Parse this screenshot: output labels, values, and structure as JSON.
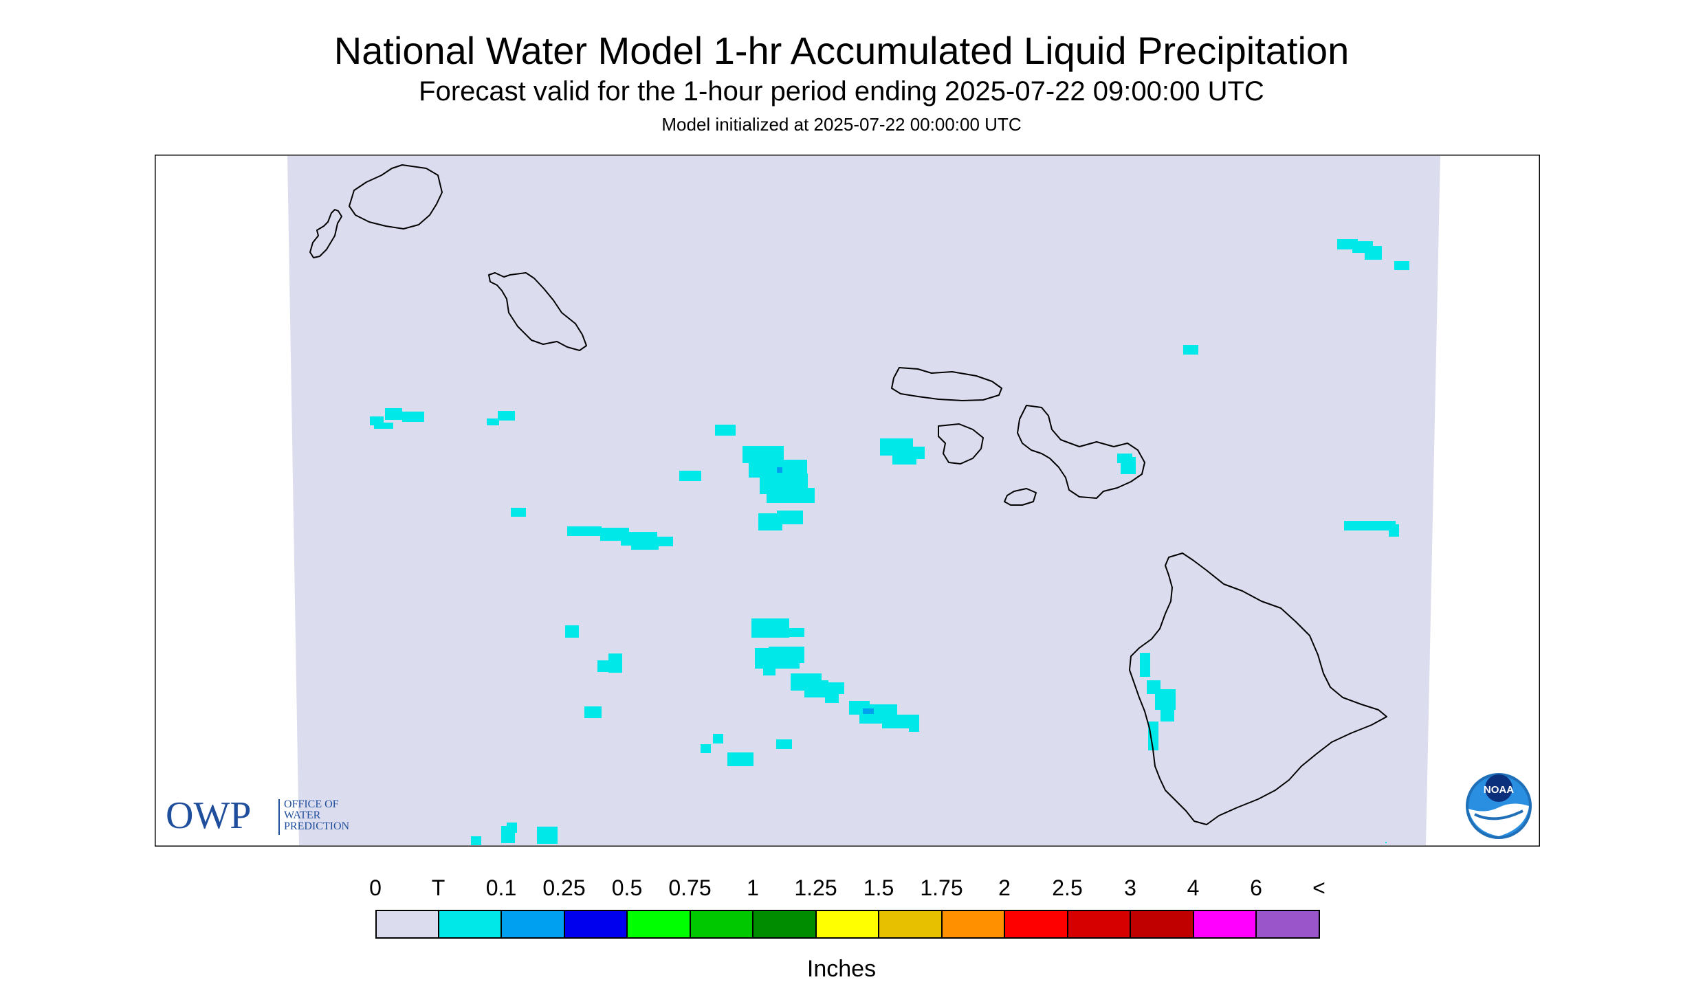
{
  "header": {
    "title": "National Water Model 1-hr Accumulated Liquid Precipitation",
    "subtitle": "Forecast valid for the 1-hour period ending 2025-07-22 09:00:00 UTC",
    "init": "Model initialized at 2025-07-22 00:00:00 UTC"
  },
  "logos": {
    "owp_mark": "OWP",
    "owp_text": [
      "OFFICE OF",
      "WATER",
      "PREDICTION"
    ],
    "noaa_mark": "NOAA"
  },
  "legend": {
    "units": "Inches",
    "labels": [
      "0",
      "T",
      "0.1",
      "0.25",
      "0.5",
      "0.75",
      "1",
      "1.25",
      "1.5",
      "1.75",
      "2",
      "2.5",
      "3",
      "4",
      "6",
      "<"
    ],
    "colors": [
      "#dcdcef",
      "#00e8e8",
      "#00a0f0",
      "#0000ee",
      "#00ff00",
      "#00c800",
      "#008c00",
      "#ffff00",
      "#e7c000",
      "#ff9000",
      "#ff0000",
      "#d60000",
      "#c00000",
      "#ff00ff",
      "#9955c9"
    ]
  },
  "colors": {
    "domain": "#dcdcef",
    "trace": "#00e8e8",
    "light": "#00a0f0",
    "owp_blue": "#1f4e9c"
  }
}
